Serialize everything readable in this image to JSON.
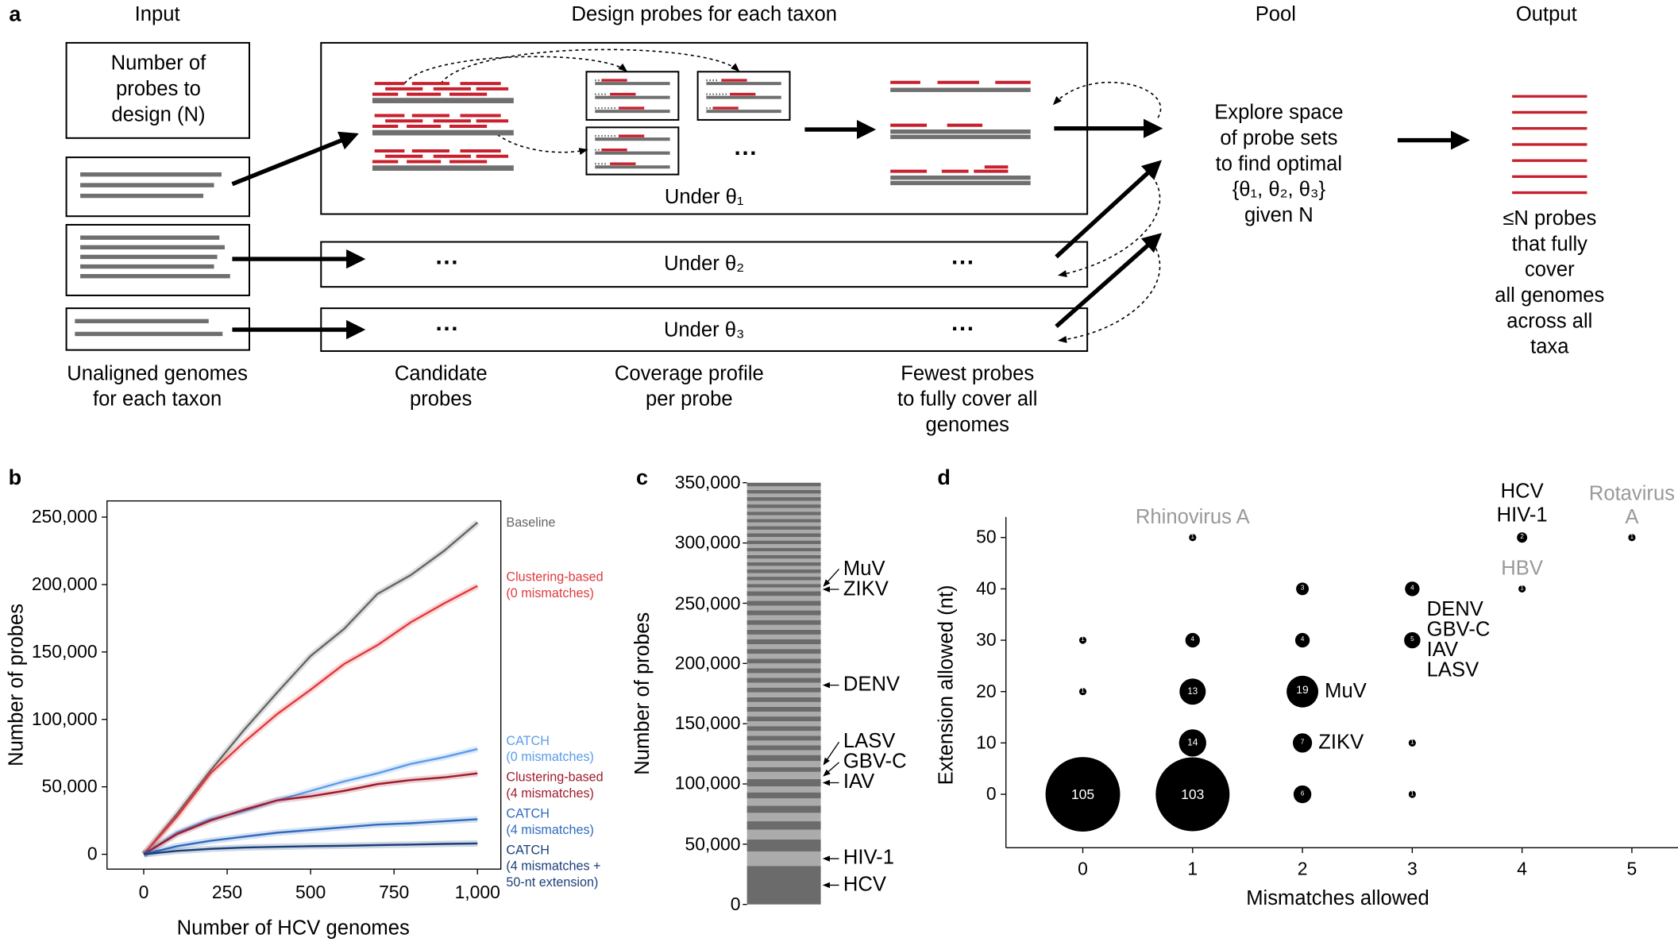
{
  "diagram": {
    "panel_label": "a",
    "headers": {
      "input": "Input",
      "design": "Design probes for each taxon",
      "pool": "Pool",
      "output": "Output"
    },
    "n_box": "Number of\nprobes to\ndesign (N)",
    "under": [
      "Under θ₁",
      "Under θ₂",
      "Under θ₃"
    ],
    "ellipsis": "···",
    "explore": "Explore space\nof probe sets\nto find optimal\n{θ₁, θ₂, θ₃}\ngiven N",
    "result": "≤N probes\nthat fully cover\nall genomes\nacross all taxa",
    "captions": [
      "Unaligned genomes\nfor each taxon",
      "Candidate\nprobes",
      "Coverage profile\nper probe",
      "Fewest probes\nto fully cover all\ngenomes"
    ]
  },
  "chart_data": [
    {
      "type": "line",
      "panel_label": "b",
      "xlabel": "Number of HCV genomes",
      "ylabel": "Number of probes",
      "x": [
        0,
        100,
        200,
        300,
        400,
        500,
        600,
        700,
        800,
        900,
        1000
      ],
      "xlim": [
        -110,
        1070
      ],
      "ylim": [
        -11000,
        262000
      ],
      "xticks": [
        0,
        250,
        500,
        750,
        {
          "value": 1000,
          "label": "1,000"
        }
      ],
      "yticks": [
        0,
        {
          "value": 50000,
          "label": "50,000"
        },
        {
          "value": 100000,
          "label": "100,000"
        },
        {
          "value": 150000,
          "label": "150,000"
        },
        {
          "value": 200000,
          "label": "200,000"
        },
        {
          "value": 250000,
          "label": "250,000"
        }
      ],
      "series": [
        {
          "name": "Baseline",
          "color": "#666666",
          "values": [
            0,
            30000,
            62000,
            92000,
            120000,
            147000,
            167000,
            193000,
            207000,
            225000,
            246000
          ]
        },
        {
          "name": "Clustering-based\n(0 mismatches)",
          "color": "#e03a3e",
          "values": [
            0,
            28000,
            60000,
            83000,
            104000,
            122000,
            141000,
            155000,
            172000,
            186000,
            199000
          ]
        },
        {
          "name": "CATCH\n(0 mismatches)",
          "color": "#5b9bea",
          "values": [
            0,
            16000,
            26000,
            32000,
            40000,
            47000,
            54000,
            60000,
            67000,
            72000,
            78000
          ]
        },
        {
          "name": "Clustering-based\n(4 mismatches)",
          "color": "#a01c2c",
          "values": [
            0,
            15000,
            25000,
            33000,
            40000,
            43000,
            47000,
            52000,
            55000,
            57000,
            60000
          ]
        },
        {
          "name": "CATCH\n(4 mismatches)",
          "color": "#2f6bbf",
          "values": [
            0,
            6000,
            10000,
            13000,
            16000,
            18000,
            20000,
            22000,
            23000,
            24500,
            26000
          ]
        },
        {
          "name": "CATCH\n(4 mismatches +\n50-nt extension)",
          "color": "#1b3f7a",
          "values": [
            0,
            2500,
            4000,
            5000,
            5500,
            6000,
            6300,
            6800,
            7200,
            7700,
            8000
          ]
        }
      ]
    },
    {
      "type": "stacked_bar",
      "panel_label": "c",
      "ylabel": "Number of probes",
      "categories": [
        "HCV",
        "HIV-1",
        null,
        null,
        null,
        null,
        null,
        null,
        null,
        null,
        "IAV",
        "GBV-C",
        null,
        "LASV",
        null,
        null,
        null,
        null,
        null,
        null,
        null,
        null,
        null,
        null,
        null,
        null,
        null,
        null,
        null,
        "DENV",
        null,
        null,
        null,
        null,
        null,
        null,
        null,
        null,
        null,
        null,
        null,
        null,
        null,
        null,
        null,
        null,
        null,
        null,
        null,
        "ZIKV",
        "MuV",
        null,
        null,
        null,
        null,
        null,
        null,
        null,
        null,
        null,
        null,
        null,
        null,
        null,
        null,
        null,
        null,
        null,
        null,
        null,
        null,
        null,
        null,
        null,
        null,
        null,
        null,
        null,
        null
      ],
      "values": [
        32000,
        12000,
        10000,
        8000,
        7000,
        7000,
        6000,
        6000,
        5000,
        5000,
        6000,
        6000,
        4000,
        5000,
        5000,
        4000,
        4000,
        4000,
        4000,
        4000,
        4000,
        4000,
        4000,
        4000,
        4000,
        4000,
        4000,
        4000,
        4000,
        4000,
        4000,
        4000,
        4000,
        4000,
        4000,
        4000,
        4000,
        4000,
        4000,
        4000,
        4000,
        4000,
        4000,
        4000,
        4000,
        4000,
        4000,
        4000,
        4000,
        3000,
        3000,
        3000,
        3000,
        3000,
        3000,
        3000,
        3000,
        3000,
        3000,
        3000,
        3000,
        3000,
        3000,
        3000,
        3000,
        3000,
        3000,
        3000,
        3000,
        3000,
        3000,
        3000,
        3000,
        3000,
        3000,
        3000,
        3000,
        3000,
        3000
      ],
      "colors": [
        "#6b6b6b",
        "#ababab"
      ],
      "ylim": [
        0,
        350000
      ],
      "yticks": [
        0,
        {
          "value": 50000,
          "label": "50,000"
        },
        {
          "value": 100000,
          "label": "100,000"
        },
        {
          "value": 150000,
          "label": "150,000"
        },
        {
          "value": 200000,
          "label": "200,000"
        },
        {
          "value": 250000,
          "label": "250,000"
        },
        {
          "value": 300000,
          "label": "300,000"
        },
        {
          "value": 350000,
          "label": "350,000"
        }
      ]
    },
    {
      "type": "bubble",
      "panel_label": "d",
      "xlabel": "Mismatches allowed",
      "ylabel": "Extension allowed (nt)",
      "x": [
        0,
        1,
        2,
        3,
        1,
        2,
        3,
        0,
        1,
        2,
        0,
        1,
        2,
        3,
        2,
        3,
        4,
        1,
        4,
        5
      ],
      "values": [
        0,
        0,
        0,
        0,
        10,
        10,
        10,
        20,
        20,
        20,
        30,
        30,
        30,
        30,
        40,
        40,
        40,
        50,
        50,
        50
      ],
      "sizes": [
        105,
        103,
        6,
        1,
        14,
        7,
        1,
        1,
        13,
        19,
        1,
        4,
        4,
        5,
        3,
        4,
        1,
        1,
        2,
        1
      ],
      "labels": [
        null,
        null,
        null,
        null,
        null,
        "ZIKV",
        null,
        null,
        null,
        "MuV",
        null,
        null,
        null,
        "DENV\nGBV-C\nIAV\nLASV",
        null,
        null,
        "HBV",
        "Rhinovirus A",
        "HCV\nHIV-1",
        "Rotavirus A"
      ],
      "label_colors": [
        null,
        null,
        null,
        null,
        null,
        "#000000",
        null,
        null,
        null,
        "#000000",
        null,
        null,
        null,
        "#000000",
        null,
        null,
        "#999999",
        "#999999",
        "#000000",
        "#999999"
      ],
      "color": "#000000",
      "xlim": [
        -0.7,
        5.42
      ],
      "ylim": [
        -10.4,
        54
      ],
      "xticks": [
        0,
        1,
        2,
        3,
        4,
        5
      ],
      "yticks": [
        0,
        10,
        20,
        30,
        40,
        50
      ]
    }
  ]
}
